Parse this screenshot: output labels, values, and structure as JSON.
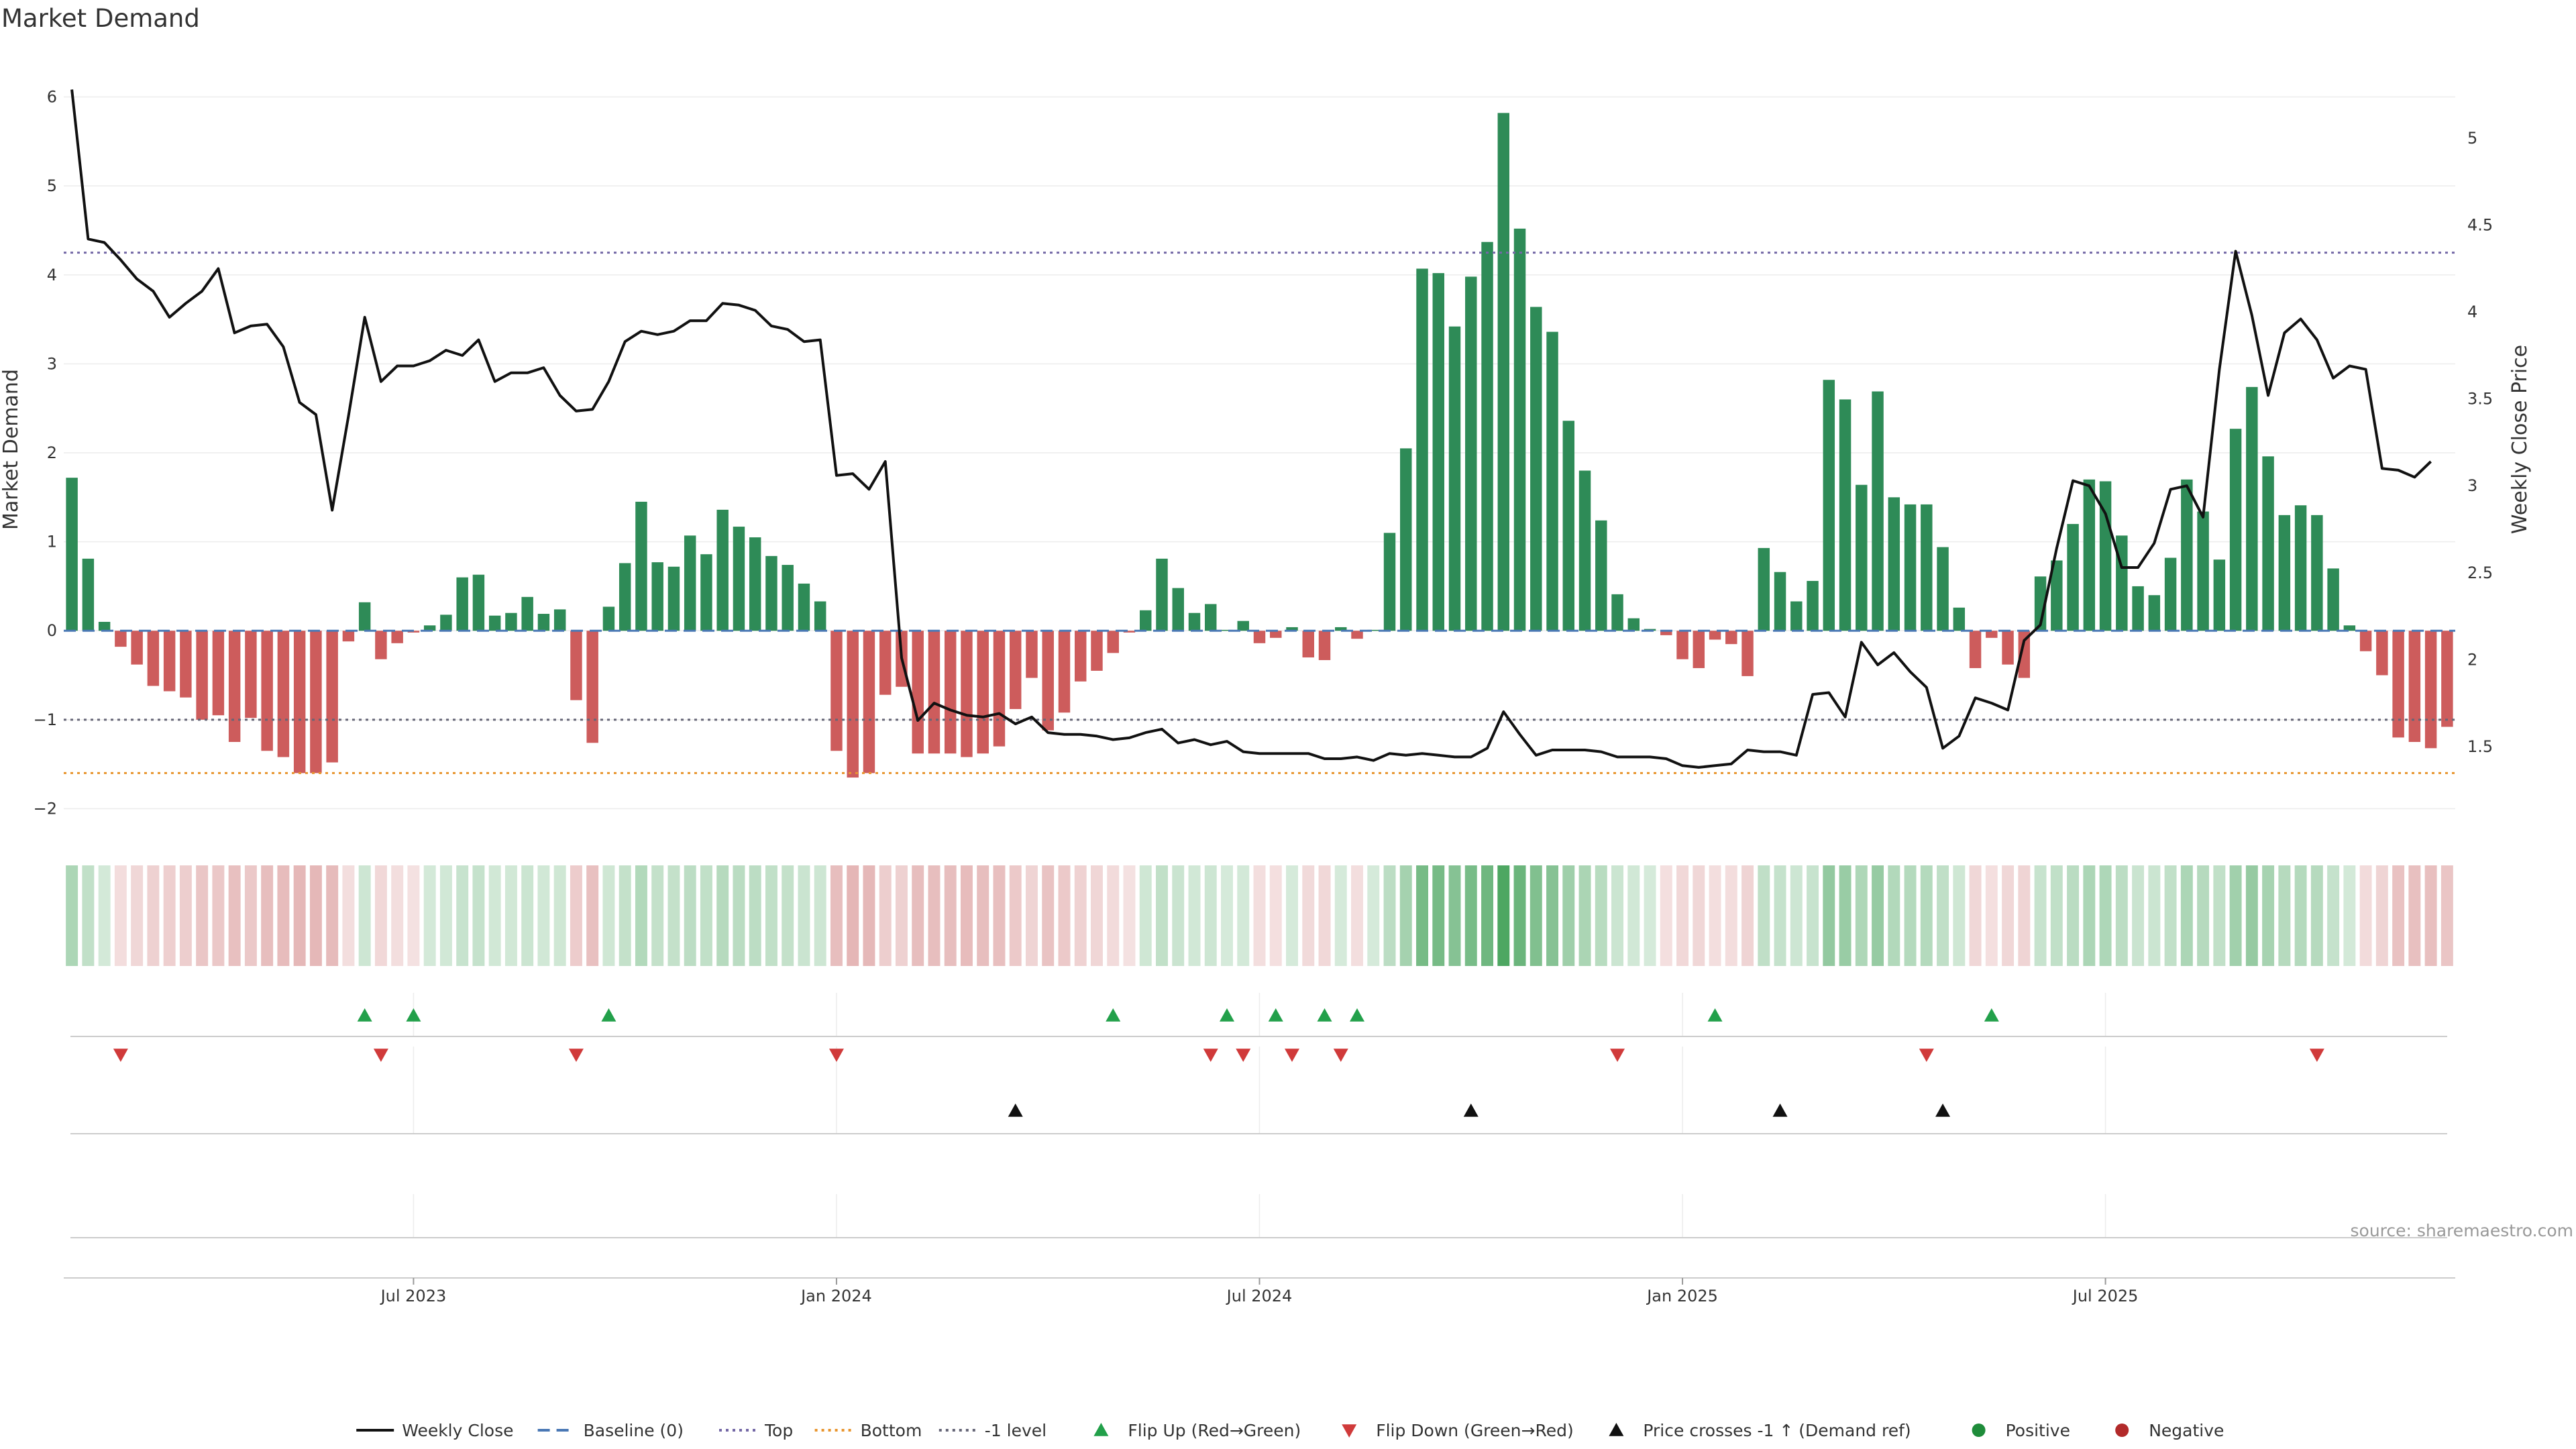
{
  "chart_data": {
    "type": "bar",
    "title": "Market Demand",
    "ylabel_left": "Market Demand",
    "ylabel_right": "Weekly Close Price",
    "ylim_left": [
      -2.2,
      6.2
    ],
    "yticks_left": [
      -2,
      -1,
      0,
      1,
      2,
      3,
      4,
      5,
      6
    ],
    "yticks_left_labels": [
      "−2",
      "−1",
      "0",
      "1",
      "2",
      "3",
      "4",
      "5",
      "6"
    ],
    "ylim_right": [
      1.04,
      5.34
    ],
    "yticks_right": [
      1.5,
      2,
      2.5,
      3,
      3.5,
      4,
      4.5,
      5
    ],
    "yticks_right_labels": [
      "1.5",
      "2",
      "2.5",
      "3",
      "3.5",
      "4",
      "4.5",
      "5"
    ],
    "x_tick_index": [
      21,
      47,
      73,
      99,
      125
    ],
    "x_tick_labels": [
      "Jul 2023",
      "Jan 2024",
      "Jul 2024",
      "Jan 2025",
      "Jul 2025"
    ],
    "reference_lines": {
      "top": 4.25,
      "bottom": -1.6,
      "minus_one": -1.0,
      "baseline": 0
    },
    "demand": [
      1.72,
      0.81,
      0.1,
      -0.18,
      -0.38,
      -0.62,
      -0.68,
      -0.75,
      -1.0,
      -0.95,
      -1.25,
      -0.98,
      -1.35,
      -1.42,
      -1.6,
      -1.6,
      -1.48,
      -0.12,
      0.32,
      -0.32,
      -0.14,
      -0.02,
      0.06,
      0.18,
      0.6,
      0.63,
      0.17,
      0.2,
      0.38,
      0.19,
      0.24,
      -0.78,
      -1.26,
      0.27,
      0.76,
      1.45,
      0.77,
      0.72,
      1.07,
      0.86,
      1.36,
      1.17,
      1.05,
      0.84,
      0.74,
      0.53,
      0.33,
      -1.35,
      -1.65,
      -1.6,
      -0.72,
      -0.63,
      -1.38,
      -1.38,
      -1.38,
      -1.42,
      -1.38,
      -1.3,
      -0.88,
      -0.53,
      -1.12,
      -0.92,
      -0.57,
      -0.45,
      -0.25,
      -0.02,
      0.23,
      0.81,
      0.48,
      0.2,
      0.3,
      0.01,
      0.11,
      -0.14,
      -0.08,
      0.04,
      -0.3,
      -0.33,
      0.04,
      -0.09,
      0.01,
      1.1,
      2.05,
      4.07,
      4.02,
      3.42,
      3.98,
      4.37,
      5.82,
      4.52,
      3.64,
      3.36,
      2.36,
      1.8,
      1.24,
      0.41,
      0.14,
      0.02,
      -0.05,
      -0.32,
      -0.42,
      -0.1,
      -0.15,
      -0.51,
      0.93,
      0.66,
      0.33,
      0.56,
      2.82,
      2.6,
      1.64,
      2.69,
      1.5,
      1.42,
      1.42,
      0.94,
      0.26,
      -0.42,
      -0.08,
      -0.38,
      -0.53,
      0.61,
      0.79,
      1.2,
      1.7,
      1.68,
      1.07,
      0.5,
      0.4,
      0.82,
      1.7,
      1.34,
      0.8,
      2.27,
      2.74,
      1.96,
      1.3,
      1.41,
      1.3,
      0.7,
      0.06,
      -0.23,
      -0.5,
      -1.2,
      -1.25,
      -1.32,
      -1.08
    ],
    "close": [
      5.28,
      4.42,
      4.4,
      4.3,
      4.19,
      4.12,
      3.97,
      4.05,
      4.12,
      4.25,
      3.88,
      3.92,
      3.93,
      3.8,
      3.48,
      3.41,
      2.86,
      3.4,
      3.97,
      3.6,
      3.69,
      3.69,
      3.72,
      3.78,
      3.75,
      3.84,
      3.6,
      3.65,
      3.65,
      3.68,
      3.52,
      3.43,
      3.44,
      3.6,
      3.83,
      3.89,
      3.87,
      3.89,
      3.95,
      3.95,
      4.05,
      4.04,
      4.01,
      3.92,
      3.9,
      3.83,
      3.84,
      3.06,
      3.07,
      2.98,
      3.14,
      2.01,
      1.65,
      1.75,
      1.71,
      1.68,
      1.67,
      1.69,
      1.63,
      1.67,
      1.58,
      1.57,
      1.57,
      1.56,
      1.54,
      1.55,
      1.58,
      1.6,
      1.52,
      1.54,
      1.51,
      1.53,
      1.47,
      1.46,
      1.46,
      1.46,
      1.46,
      1.43,
      1.43,
      1.44,
      1.42,
      1.46,
      1.45,
      1.46,
      1.45,
      1.44,
      1.44,
      1.49,
      1.7,
      1.57,
      1.45,
      1.48,
      1.48,
      1.48,
      1.47,
      1.44,
      1.44,
      1.44,
      1.43,
      1.39,
      1.38,
      1.39,
      1.4,
      1.48,
      1.47,
      1.47,
      1.45,
      1.8,
      1.81,
      1.67,
      2.1,
      1.97,
      2.04,
      1.93,
      1.84,
      1.49,
      1.56,
      1.78,
      1.75,
      1.71,
      2.11,
      2.2,
      2.64,
      3.03,
      3.0,
      2.84,
      2.53,
      2.53,
      2.67,
      2.98,
      3.0,
      2.82,
      3.67,
      4.35,
      3.98,
      3.52,
      3.88,
      3.96,
      3.84,
      3.62,
      3.69,
      3.67,
      3.1,
      3.09,
      3.05,
      3.14
    ],
    "flip_up": [
      18,
      21,
      33,
      64,
      71,
      74,
      77,
      79,
      101,
      118
    ],
    "flip_down": [
      3,
      19,
      31,
      47,
      70,
      72,
      75,
      78,
      95,
      114,
      138
    ],
    "price_cross": [
      58,
      86,
      105,
      115
    ],
    "legend": [
      {
        "label": "Weekly Close",
        "kind": "line",
        "color": "#111111",
        "dash": ""
      },
      {
        "label": "Baseline (0)",
        "kind": "line",
        "color": "#4a78b5",
        "dash": "18 10"
      },
      {
        "label": "Top",
        "kind": "line",
        "color": "#7468a6",
        "dash": "4 6"
      },
      {
        "label": "Bottom",
        "kind": "line",
        "color": "#e8952e",
        "dash": "4 6"
      },
      {
        "label": "-1 level",
        "kind": "line",
        "color": "#666677",
        "dash": "4 6"
      },
      {
        "label": "Flip Up (Red→Green)",
        "kind": "up",
        "color": "#22a04a",
        "dash": ""
      },
      {
        "label": "Flip Down (Green→Red)",
        "kind": "down",
        "color": "#d03a3a",
        "dash": ""
      },
      {
        "label": "Price crosses -1 ↑ (Demand ref)",
        "kind": "up",
        "color": "#111111",
        "dash": ""
      },
      {
        "label": "Positive",
        "kind": "dot",
        "color": "#1e8c3a",
        "dash": ""
      },
      {
        "label": "Negative",
        "kind": "dot",
        "color": "#b22a2a",
        "dash": ""
      }
    ],
    "source": "source: sharemaestro.com"
  },
  "colors": {
    "positive_bar": "#2e8b57",
    "negative_bar": "#cd5c5c",
    "price_line": "#111111",
    "top_line": "#7468a6",
    "bottom_line": "#e8952e",
    "minus_one_line": "#666677",
    "baseline": "#4a78b5",
    "flip_up": "#22a04a",
    "flip_down": "#d03a3a",
    "cross": "#111111"
  }
}
